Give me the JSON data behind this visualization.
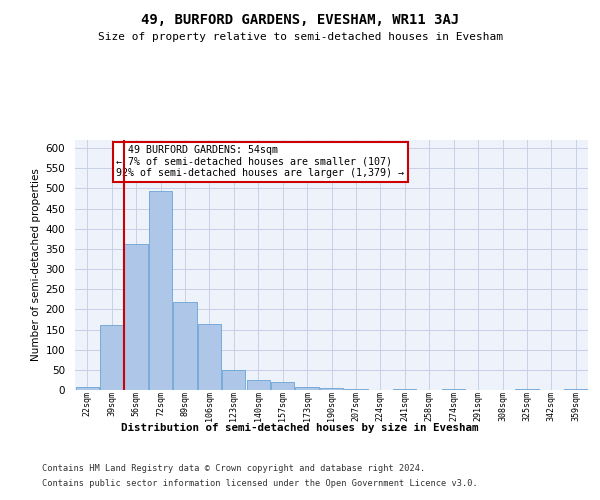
{
  "title": "49, BURFORD GARDENS, EVESHAM, WR11 3AJ",
  "subtitle": "Size of property relative to semi-detached houses in Evesham",
  "xlabel": "Distribution of semi-detached houses by size in Evesham",
  "ylabel": "Number of semi-detached properties",
  "footer_line1": "Contains HM Land Registry data © Crown copyright and database right 2024.",
  "footer_line2": "Contains public sector information licensed under the Open Government Licence v3.0.",
  "annotation_line1": "  49 BURFORD GARDENS: 54sqm",
  "annotation_line2": "← 7% of semi-detached houses are smaller (107)",
  "annotation_line3": "92% of semi-detached houses are larger (1,379) →",
  "bar_labels": [
    "22sqm",
    "39sqm",
    "56sqm",
    "72sqm",
    "89sqm",
    "106sqm",
    "123sqm",
    "140sqm",
    "157sqm",
    "173sqm",
    "190sqm",
    "207sqm",
    "224sqm",
    "241sqm",
    "258sqm",
    "274sqm",
    "291sqm",
    "308sqm",
    "325sqm",
    "342sqm",
    "359sqm"
  ],
  "bar_values": [
    8,
    160,
    363,
    493,
    218,
    163,
    49,
    24,
    20,
    7,
    6,
    2,
    0,
    2,
    0,
    2,
    1,
    0,
    2,
    0,
    2
  ],
  "bar_color": "#aec6e8",
  "bar_edgecolor": "#6aa3d5",
  "vline_x_index": 1.5,
  "vline_color": "#cc0000",
  "ylim": [
    0,
    620
  ],
  "yticks": [
    0,
    50,
    100,
    150,
    200,
    250,
    300,
    350,
    400,
    450,
    500,
    550,
    600
  ],
  "background_color": "#ffffff",
  "plot_bg_color": "#eef2fb",
  "grid_color": "#c8d0e8"
}
